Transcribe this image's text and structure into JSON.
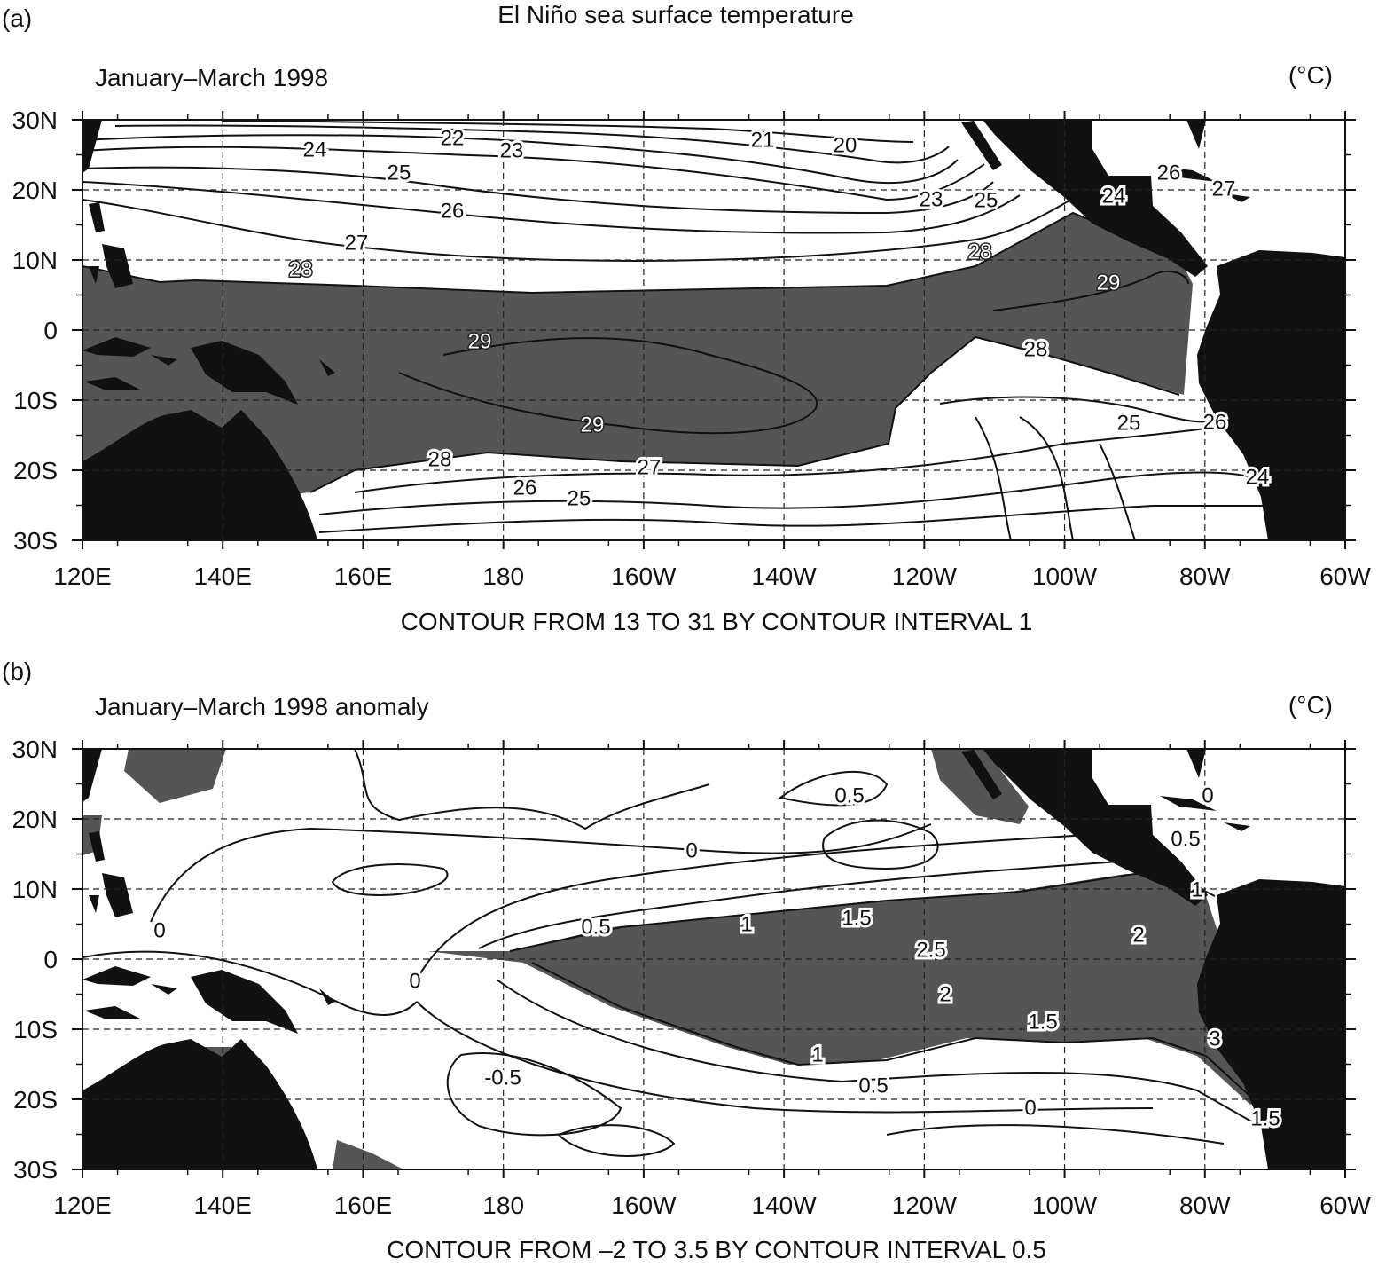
{
  "title": "El Niño sea surface temperature",
  "panels": [
    {
      "tag": "(a)",
      "subtitle": "January–March 1998",
      "unit": "(°C)",
      "ylim": [
        -30,
        30
      ],
      "xlim": [
        120,
        300
      ],
      "yticks": [
        {
          "value": 30,
          "label": "30N"
        },
        {
          "value": 20,
          "label": "20N"
        },
        {
          "value": 10,
          "label": "10N"
        },
        0,
        {
          "value": -10,
          "label": "10S"
        },
        {
          "value": -20,
          "label": "20S"
        },
        {
          "value": -30,
          "label": "30S"
        }
      ],
      "xticks": [
        {
          "value": 120,
          "label": "120E"
        },
        {
          "value": 140,
          "label": "140E"
        },
        {
          "value": 160,
          "label": "160E"
        },
        180,
        {
          "value": 200,
          "label": "160W"
        },
        {
          "value": 220,
          "label": "140W"
        },
        {
          "value": 240,
          "label": "120W"
        },
        {
          "value": 260,
          "label": "100W"
        },
        {
          "value": 280,
          "label": "80W"
        },
        {
          "value": 300,
          "label": "60W"
        }
      ],
      "contour_labels": [
        24,
        22,
        23,
        21,
        20,
        25,
        26,
        27,
        28,
        23,
        25,
        24,
        26,
        27,
        28,
        29,
        29,
        28,
        29,
        28,
        27,
        26,
        25,
        25,
        26,
        24
      ],
      "footer": "CONTOUR FROM 13 TO 31 BY CONTOUR INTERVAL 1"
    },
    {
      "tag": "(b)",
      "subtitle": "January–March 1998 anomaly",
      "unit": "(°C)",
      "ylim": [
        -30,
        30
      ],
      "xlim": [
        120,
        300
      ],
      "yticks": [
        {
          "value": 30,
          "label": "30N"
        },
        {
          "value": 20,
          "label": "20N"
        },
        {
          "value": 10,
          "label": "10N"
        },
        0,
        {
          "value": -10,
          "label": "10S"
        },
        {
          "value": -20,
          "label": "20S"
        },
        {
          "value": -30,
          "label": "30S"
        }
      ],
      "xticks": [
        {
          "value": 120,
          "label": "120E"
        },
        {
          "value": 140,
          "label": "140E"
        },
        {
          "value": 160,
          "label": "160E"
        },
        180,
        {
          "value": 200,
          "label": "160W"
        },
        {
          "value": 220,
          "label": "140W"
        },
        {
          "value": 240,
          "label": "120W"
        },
        {
          "value": 260,
          "label": "100W"
        },
        {
          "value": 280,
          "label": "80W"
        },
        {
          "value": 300,
          "label": "60W"
        }
      ],
      "contour_labels": [
        0.5,
        0,
        0,
        0.5,
        1,
        1.5,
        2.5,
        2,
        0,
        2,
        1.5,
        3,
        1,
        -0.5,
        0.5,
        0,
        1.5,
        0,
        0.5,
        1
      ],
      "footer": "CONTOUR FROM –2 TO 3.5 BY CONTOUR INTERVAL 0.5"
    }
  ]
}
